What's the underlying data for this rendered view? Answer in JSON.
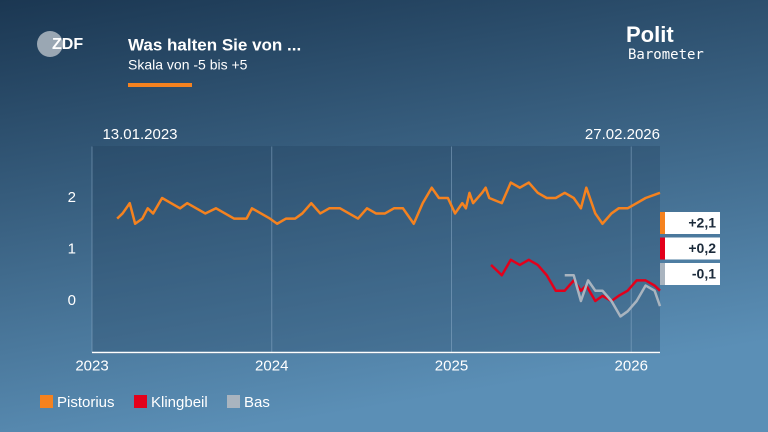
{
  "branding": {
    "channel": "ZDF",
    "show": [
      "Polit",
      "Barometer"
    ]
  },
  "chart_data": {
    "type": "line",
    "title": "Was halten Sie von ...",
    "subtitle": "Skala von -5 bis +5",
    "date_range": [
      "13.01.2023",
      "27.02.2026"
    ],
    "xlim": [
      2023,
      2026.16
    ],
    "xticks": [
      2023,
      2024,
      2025,
      2026
    ],
    "ylim": [
      -1,
      3
    ],
    "yticks": [
      0,
      1,
      2
    ],
    "grid": true,
    "series": [
      {
        "name": "Pistorius",
        "color": "#f5821f",
        "end_label": "+2,1",
        "x": [
          2023.14,
          2023.17,
          2023.21,
          2023.24,
          2023.28,
          2023.31,
          2023.34,
          2023.39,
          2023.44,
          2023.49,
          2023.53,
          2023.58,
          2023.63,
          2023.69,
          2023.74,
          2023.79,
          2023.86,
          2023.89,
          2023.94,
          2023.99,
          2024.03,
          2024.08,
          2024.13,
          2024.17,
          2024.22,
          2024.27,
          2024.32,
          2024.38,
          2024.43,
          2024.48,
          2024.53,
          2024.58,
          2024.63,
          2024.68,
          2024.73,
          2024.79,
          2024.84,
          2024.89,
          2024.93,
          2024.98,
          2025.02,
          2025.06,
          2025.08,
          2025.1,
          2025.12,
          2025.17,
          2025.19,
          2025.21,
          2025.28,
          2025.33,
          2025.38,
          2025.43,
          2025.48,
          2025.53,
          2025.58,
          2025.63,
          2025.68,
          2025.72,
          2025.75,
          2025.8,
          2025.84,
          2025.89,
          2025.93,
          2025.98,
          2026.03,
          2026.08,
          2026.16
        ],
        "values": [
          1.6,
          1.7,
          1.9,
          1.5,
          1.6,
          1.8,
          1.7,
          2.0,
          1.9,
          1.8,
          1.9,
          1.8,
          1.7,
          1.8,
          1.7,
          1.6,
          1.6,
          1.8,
          1.7,
          1.6,
          1.5,
          1.6,
          1.6,
          1.7,
          1.9,
          1.7,
          1.8,
          1.8,
          1.7,
          1.6,
          1.8,
          1.7,
          1.7,
          1.8,
          1.8,
          1.5,
          1.9,
          2.2,
          2.0,
          2.0,
          1.7,
          1.9,
          1.8,
          2.1,
          1.9,
          2.1,
          2.2,
          2.0,
          1.9,
          2.3,
          2.2,
          2.3,
          2.1,
          2.0,
          2.0,
          2.1,
          2.0,
          1.8,
          2.2,
          1.7,
          1.5,
          1.7,
          1.8,
          1.8,
          1.9,
          2.0,
          2.1
        ]
      },
      {
        "name": "Klingbeil",
        "color": "#e3001b",
        "end_label": "+0,2",
        "x": [
          2025.22,
          2025.28,
          2025.33,
          2025.38,
          2025.43,
          2025.48,
          2025.53,
          2025.58,
          2025.63,
          2025.68,
          2025.72,
          2025.75,
          2025.8,
          2025.84,
          2025.89,
          2025.93,
          2025.98,
          2026.03,
          2026.08,
          2026.13,
          2026.16
        ],
        "values": [
          0.7,
          0.5,
          0.8,
          0.7,
          0.8,
          0.7,
          0.5,
          0.2,
          0.2,
          0.4,
          0.2,
          0.3,
          0.0,
          0.1,
          0.0,
          0.1,
          0.2,
          0.4,
          0.4,
          0.3,
          0.2
        ]
      },
      {
        "name": "Bas",
        "color": "#a9b4bf",
        "end_label": "-0,1",
        "x": [
          2025.63,
          2025.68,
          2025.72,
          2025.76,
          2025.8,
          2025.84,
          2025.89,
          2025.94,
          2025.98,
          2026.03,
          2026.08,
          2026.13,
          2026.16
        ],
        "values": [
          0.5,
          0.5,
          0.0,
          0.4,
          0.2,
          0.2,
          0.0,
          -0.3,
          -0.2,
          0.0,
          0.3,
          0.2,
          -0.1
        ]
      }
    ]
  }
}
